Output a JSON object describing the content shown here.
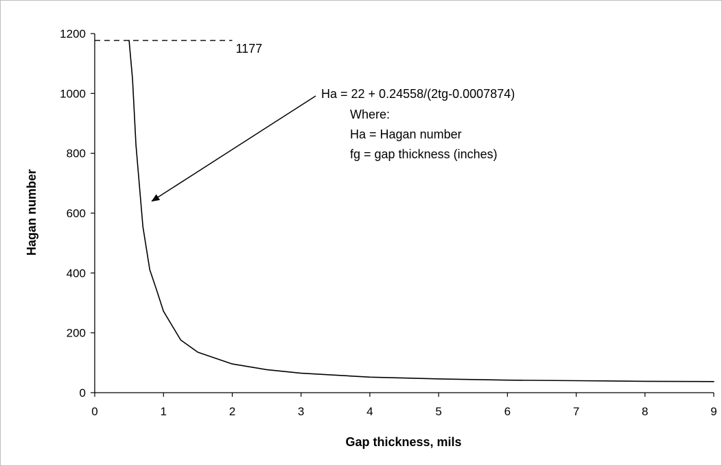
{
  "chart_data": {
    "type": "line",
    "title": "",
    "xlabel": "Gap thickness, mils",
    "ylabel": "Hagan number",
    "xlim": [
      0,
      9
    ],
    "ylim": [
      0,
      1200
    ],
    "xticks": [
      "0",
      "1",
      "2",
      "3",
      "4",
      "5",
      "6",
      "7",
      "8",
      "9"
    ],
    "yticks": [
      "0",
      "200",
      "400",
      "600",
      "800",
      "1000",
      "1200"
    ],
    "grid": false,
    "legend": "none",
    "series": [
      {
        "name": "",
        "x": [
          0.5,
          0.55,
          0.6,
          0.7,
          0.8,
          0.9,
          1.0,
          1.25,
          1.5,
          2.0,
          2.5,
          3.0,
          4.0,
          5.0,
          6.0,
          7.0,
          8.0,
          9.0
        ],
        "y": [
          1177,
          1048,
          828,
          555,
          411,
          343,
          272,
          176,
          135,
          96,
          77,
          65,
          52,
          46,
          42,
          40,
          38,
          37
        ],
        "color": "#000000"
      }
    ],
    "reference_line": {
      "y": 1177,
      "x_range": [
        0,
        2
      ],
      "style": "dashed",
      "label": "1177"
    },
    "annotation": {
      "lines": [
        "Ha = 22 + 0.24558/(2tg-0.0007874)",
        "Where:",
        "Ha = Hagan number",
        "fg = gap thickness (inches)"
      ],
      "arrow_target": {
        "x": 0.83,
        "y": 640
      }
    }
  }
}
